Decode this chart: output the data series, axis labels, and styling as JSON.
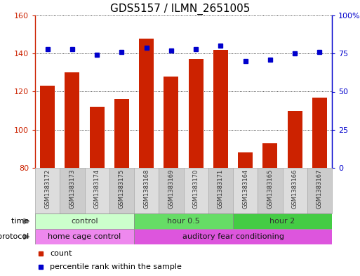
{
  "title": "GDS5157 / ILMN_2651005",
  "samples": [
    "GSM1383172",
    "GSM1383173",
    "GSM1383174",
    "GSM1383175",
    "GSM1383168",
    "GSM1383169",
    "GSM1383170",
    "GSM1383171",
    "GSM1383164",
    "GSM1383165",
    "GSM1383166",
    "GSM1383167"
  ],
  "counts": [
    123,
    130,
    112,
    116,
    148,
    128,
    137,
    142,
    88,
    93,
    110,
    117
  ],
  "percentiles": [
    78,
    78,
    74,
    76,
    79,
    77,
    78,
    80,
    70,
    71,
    75,
    76
  ],
  "ylim_left": [
    80,
    160
  ],
  "ylim_right": [
    0,
    100
  ],
  "yticks_left": [
    80,
    100,
    120,
    140,
    160
  ],
  "yticks_right": [
    0,
    25,
    50,
    75,
    100
  ],
  "ytick_labels_right": [
    "0",
    "25",
    "50",
    "75",
    "100%"
  ],
  "bar_color": "#cc2200",
  "dot_color": "#0000cc",
  "bg_color": "#ffffff",
  "plot_bg": "#ffffff",
  "gridline_color": "#000000",
  "time_groups": [
    {
      "label": "control",
      "start": 0,
      "end": 4,
      "color": "#ccffcc"
    },
    {
      "label": "hour 0.5",
      "start": 4,
      "end": 8,
      "color": "#66dd66"
    },
    {
      "label": "hour 2",
      "start": 8,
      "end": 12,
      "color": "#44cc44"
    }
  ],
  "protocol_groups": [
    {
      "label": "home cage control",
      "start": 0,
      "end": 4,
      "color": "#ee88ee"
    },
    {
      "label": "auditory fear conditioning",
      "start": 4,
      "end": 12,
      "color": "#dd55dd"
    }
  ],
  "time_label": "time",
  "protocol_label": "protocol",
  "legend_count": "count",
  "legend_pct": "percentile rank within the sample",
  "sample_label_color_even": "#dddddd",
  "sample_label_color_odd": "#cccccc",
  "sample_text_color": "#333333",
  "arrow_color": "#888888"
}
